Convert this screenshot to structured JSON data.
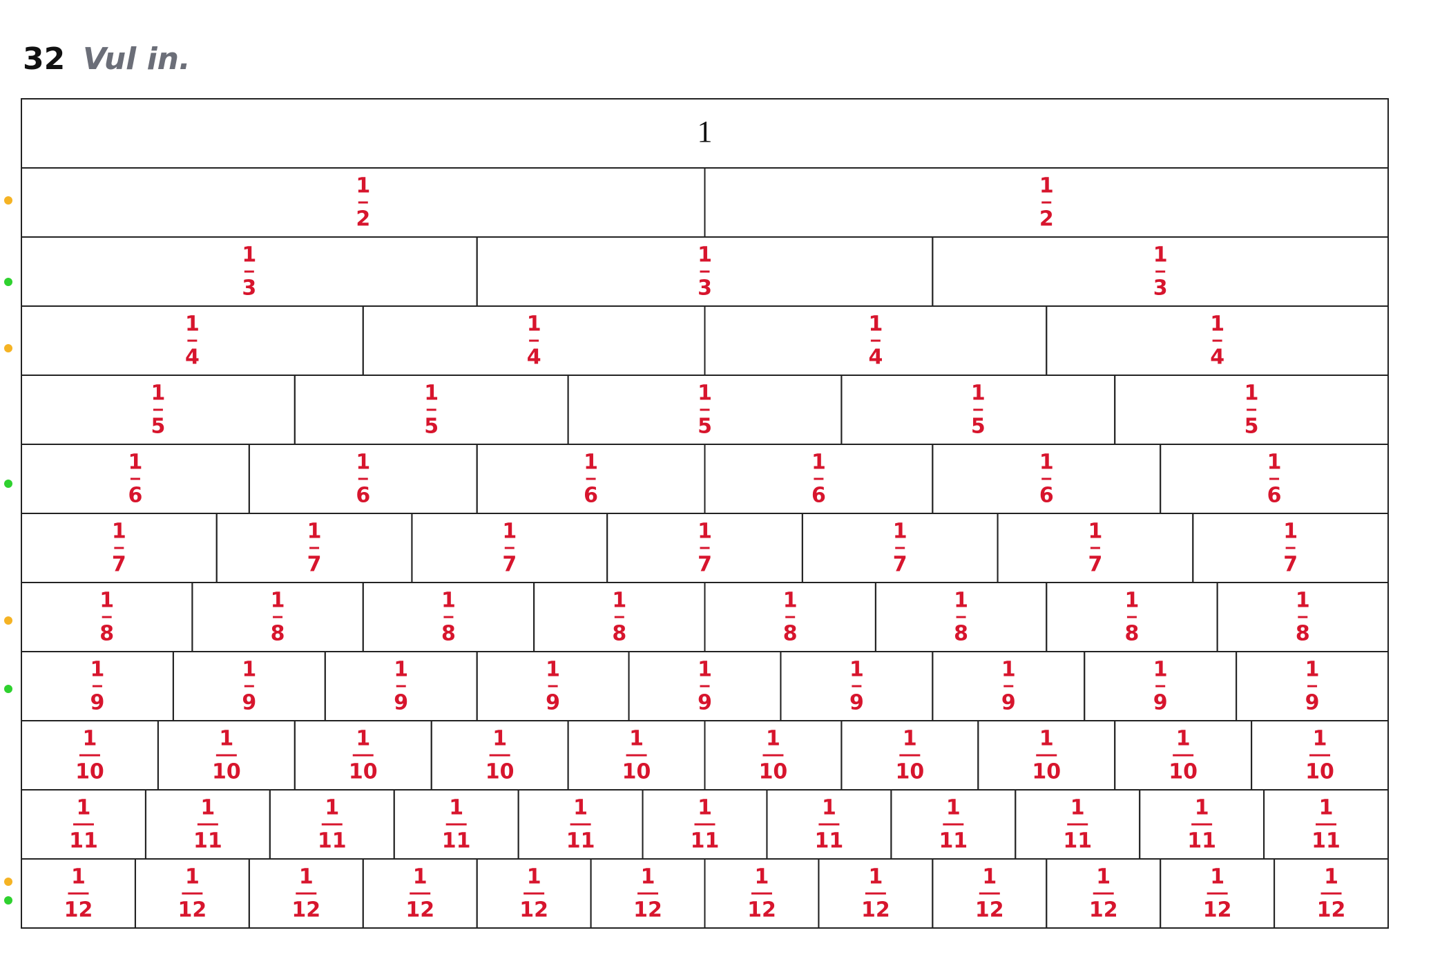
{
  "header": {
    "number": "32",
    "title": "Vul in."
  },
  "table": {
    "rows": [
      {
        "cells": [
          [
            "1"
          ]
        ]
      },
      {
        "cells": [
          [
            "1",
            "2"
          ],
          [
            "1",
            "2"
          ]
        ]
      },
      {
        "cells": [
          [
            "1",
            "3"
          ],
          [
            "1",
            "3"
          ],
          [
            "1",
            "3"
          ]
        ]
      },
      {
        "cells": [
          [
            "1",
            "4"
          ],
          [
            "1",
            "4"
          ],
          [
            "1",
            "4"
          ],
          [
            "1",
            "4"
          ]
        ]
      },
      {
        "cells": [
          [
            "1",
            "5"
          ],
          [
            "1",
            "5"
          ],
          [
            "1",
            "5"
          ],
          [
            "1",
            "5"
          ],
          [
            "1",
            "5"
          ]
        ]
      },
      {
        "cells": [
          [
            "1",
            "6"
          ],
          [
            "1",
            "6"
          ],
          [
            "1",
            "6"
          ],
          [
            "1",
            "6"
          ],
          [
            "1",
            "6"
          ],
          [
            "1",
            "6"
          ]
        ]
      },
      {
        "cells": [
          [
            "1",
            "7"
          ],
          [
            "1",
            "7"
          ],
          [
            "1",
            "7"
          ],
          [
            "1",
            "7"
          ],
          [
            "1",
            "7"
          ],
          [
            "1",
            "7"
          ],
          [
            "1",
            "7"
          ]
        ]
      },
      {
        "cells": [
          [
            "1",
            "8"
          ],
          [
            "1",
            "8"
          ],
          [
            "1",
            "8"
          ],
          [
            "1",
            "8"
          ],
          [
            "1",
            "8"
          ],
          [
            "1",
            "8"
          ],
          [
            "1",
            "8"
          ],
          [
            "1",
            "8"
          ]
        ]
      },
      {
        "cells": [
          [
            "1",
            "9"
          ],
          [
            "1",
            "9"
          ],
          [
            "1",
            "9"
          ],
          [
            "1",
            "9"
          ],
          [
            "1",
            "9"
          ],
          [
            "1",
            "9"
          ],
          [
            "1",
            "9"
          ],
          [
            "1",
            "9"
          ],
          [
            "1",
            "9"
          ]
        ]
      },
      {
        "cells": [
          [
            "1",
            "10"
          ],
          [
            "1",
            "10"
          ],
          [
            "1",
            "10"
          ],
          [
            "1",
            "10"
          ],
          [
            "1",
            "10"
          ],
          [
            "1",
            "10"
          ],
          [
            "1",
            "10"
          ],
          [
            "1",
            "10"
          ],
          [
            "1",
            "10"
          ],
          [
            "1",
            "10"
          ]
        ]
      },
      {
        "cells": [
          [
            "1",
            "11"
          ],
          [
            "1",
            "11"
          ],
          [
            "1",
            "11"
          ],
          [
            "1",
            "11"
          ],
          [
            "1",
            "11"
          ],
          [
            "1",
            "11"
          ],
          [
            "1",
            "11"
          ],
          [
            "1",
            "11"
          ],
          [
            "1",
            "11"
          ],
          [
            "1",
            "11"
          ],
          [
            "1",
            "11"
          ]
        ]
      },
      {
        "cells": [
          [
            "1",
            "12"
          ],
          [
            "1",
            "12"
          ],
          [
            "1",
            "12"
          ],
          [
            "1",
            "12"
          ],
          [
            "1",
            "12"
          ],
          [
            "1",
            "12"
          ],
          [
            "1",
            "12"
          ],
          [
            "1",
            "12"
          ],
          [
            "1",
            "12"
          ],
          [
            "1",
            "12"
          ],
          [
            "1",
            "12"
          ],
          [
            "1",
            "12"
          ]
        ]
      }
    ]
  }
}
